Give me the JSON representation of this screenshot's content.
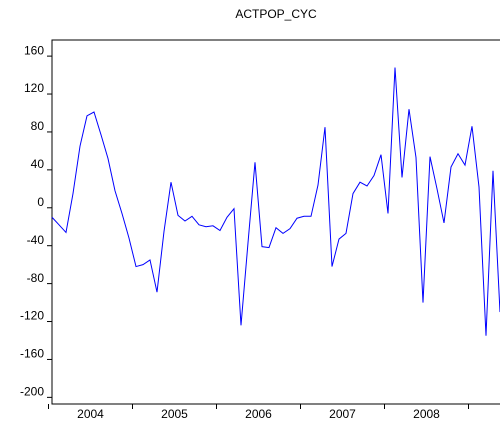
{
  "chart_data": {
    "type": "line",
    "title": "ACTPOP_CYC",
    "categories": [
      null,
      null,
      null,
      null,
      null,
      "2004",
      null,
      null,
      null,
      null,
      null,
      null,
      null,
      null,
      null,
      null,
      null,
      "2005",
      null,
      null,
      null,
      null,
      null,
      null,
      null,
      null,
      null,
      null,
      null,
      "2006",
      null,
      null,
      null,
      null,
      null,
      null,
      null,
      null,
      null,
      null,
      null,
      "2007",
      null,
      null,
      null,
      null,
      null,
      null,
      null,
      null,
      null,
      null,
      null,
      "2008",
      null,
      null,
      null,
      null,
      null,
      null,
      null,
      null,
      null,
      null,
      null
    ],
    "series": [
      {
        "name": "ACTPOP_CYC",
        "color": "#0000ff",
        "values": [
          -10,
          -18,
          -26,
          15,
          65,
          97,
          101,
          77,
          52,
          18,
          -6,
          -32,
          -62,
          -60,
          -55,
          -89,
          -25,
          27,
          -8,
          -14,
          -9,
          -18,
          -20,
          -19,
          -24,
          -10,
          -1,
          -124,
          -37,
          48,
          -41,
          -42,
          -21,
          -27,
          -22,
          -11,
          -9,
          -9,
          24,
          85,
          -62,
          -33,
          -27,
          15,
          27,
          23,
          34,
          56,
          -6,
          148,
          32,
          104,
          53,
          -100,
          54,
          20,
          -16,
          43,
          57,
          45,
          86,
          22,
          -135,
          39,
          -110
        ]
      }
    ],
    "ylim": [
      -207,
      177
    ],
    "yticks": [
      -200,
      -160,
      -120,
      -80,
      -40,
      0,
      40,
      80,
      120,
      160
    ]
  }
}
